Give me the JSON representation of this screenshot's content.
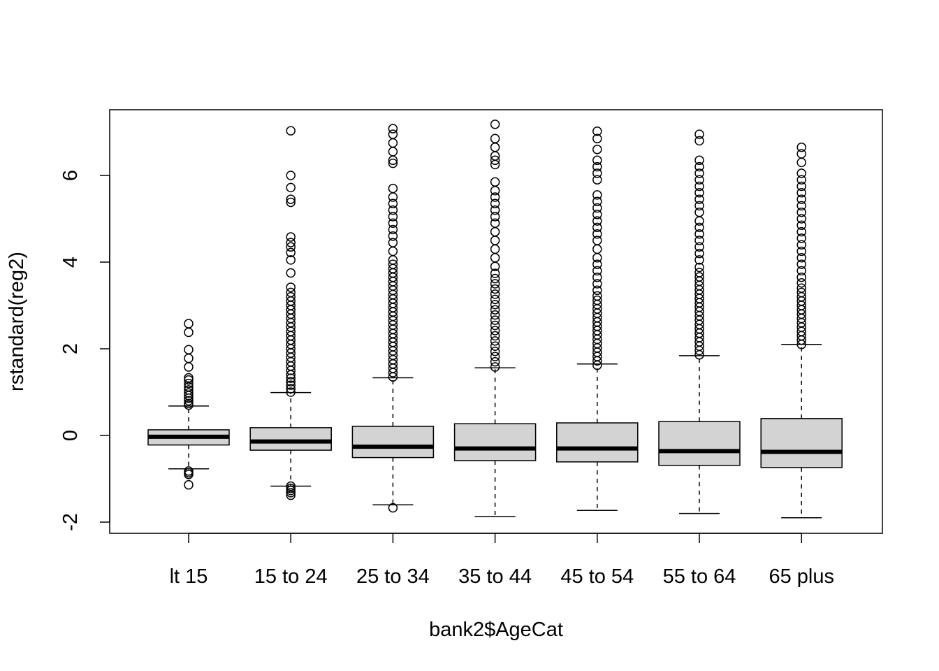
{
  "chart_data": {
    "type": "boxplot",
    "xlabel": "bank2$AgeCat",
    "ylabel": "rstandard(reg2)",
    "ylim": [
      -2.25,
      7.5
    ],
    "yticks": [
      -2,
      0,
      2,
      4,
      6
    ],
    "ytick_labels": [
      "-2",
      "0",
      "2",
      "4",
      "6"
    ],
    "grid": false,
    "box_fill": "#d3d3d3",
    "line_color": "#000000",
    "categories": [
      "lt 15",
      "15 to 24",
      "25 to 34",
      "35 to 44",
      "45 to 54",
      "55 to 64",
      "65 plus"
    ],
    "boxes": [
      {
        "label": "lt 15",
        "whisker_low": -0.77,
        "q1": -0.22,
        "median": -0.03,
        "q3": 0.13,
        "whisker_high": 0.68,
        "outliers": [
          -0.82,
          -0.86,
          -0.9,
          -1.14,
          0.7,
          0.74,
          0.8,
          0.86,
          0.92,
          0.98,
          1.05,
          1.12,
          1.2,
          1.28,
          1.33,
          1.58,
          1.78,
          1.98,
          2.38,
          2.58
        ]
      },
      {
        "label": "15 to 24",
        "whisker_low": -1.17,
        "q1": -0.34,
        "median": -0.14,
        "q3": 0.18,
        "whisker_high": 0.99,
        "outliers": [
          -1.17,
          -1.22,
          -1.27,
          -1.32,
          -1.38,
          1.0,
          1.08,
          1.16,
          1.24,
          1.32,
          1.4,
          1.5,
          1.6,
          1.7,
          1.8,
          1.9,
          2.0,
          2.1,
          2.2,
          2.3,
          2.4,
          2.5,
          2.6,
          2.7,
          2.8,
          2.9,
          3.0,
          3.1,
          3.2,
          3.3,
          3.42,
          3.75,
          4.05,
          4.22,
          4.35,
          4.45,
          4.58,
          5.38,
          5.45,
          5.72,
          6.0,
          7.03
        ]
      },
      {
        "label": "25 to 34",
        "whisker_low": -1.6,
        "q1": -0.51,
        "median": -0.26,
        "q3": 0.21,
        "whisker_high": 1.33,
        "outliers": [
          -1.67,
          1.35,
          1.45,
          1.55,
          1.65,
          1.75,
          1.85,
          1.95,
          2.05,
          2.15,
          2.25,
          2.35,
          2.45,
          2.55,
          2.65,
          2.75,
          2.85,
          2.95,
          3.05,
          3.15,
          3.25,
          3.35,
          3.45,
          3.55,
          3.65,
          3.75,
          3.85,
          3.95,
          4.05,
          4.25,
          4.45,
          4.6,
          4.75,
          4.9,
          5.05,
          5.2,
          5.35,
          5.5,
          5.7,
          6.28,
          6.35,
          6.55,
          6.75,
          6.95,
          7.08
        ]
      },
      {
        "label": "35 to 44",
        "whisker_low": -1.87,
        "q1": -0.58,
        "median": -0.3,
        "q3": 0.27,
        "whisker_high": 1.56,
        "outliers": [
          1.58,
          1.7,
          1.82,
          1.94,
          2.06,
          2.18,
          2.3,
          2.42,
          2.54,
          2.66,
          2.78,
          2.9,
          3.02,
          3.14,
          3.26,
          3.38,
          3.5,
          3.62,
          3.74,
          3.9,
          4.1,
          4.3,
          4.5,
          4.7,
          4.9,
          5.05,
          5.2,
          5.35,
          5.5,
          5.65,
          5.85,
          6.25,
          6.35,
          6.45,
          6.65,
          6.85,
          7.18
        ]
      },
      {
        "label": "45 to 54",
        "whisker_low": -1.73,
        "q1": -0.61,
        "median": -0.3,
        "q3": 0.29,
        "whisker_high": 1.65,
        "outliers": [
          1.62,
          1.72,
          1.82,
          1.92,
          2.02,
          2.12,
          2.22,
          2.32,
          2.42,
          2.52,
          2.62,
          2.72,
          2.82,
          2.92,
          3.02,
          3.12,
          3.22,
          3.35,
          3.5,
          3.65,
          3.8,
          3.95,
          4.1,
          4.3,
          4.5,
          4.65,
          4.8,
          4.95,
          5.1,
          5.25,
          5.4,
          5.55,
          5.9,
          6.05,
          6.2,
          6.35,
          6.6,
          6.85,
          7.02
        ]
      },
      {
        "label": "55 to 64",
        "whisker_low": -1.8,
        "q1": -0.69,
        "median": -0.36,
        "q3": 0.32,
        "whisker_high": 1.84,
        "outliers": [
          1.86,
          1.96,
          2.06,
          2.16,
          2.26,
          2.36,
          2.46,
          2.56,
          2.66,
          2.76,
          2.86,
          2.96,
          3.06,
          3.16,
          3.26,
          3.36,
          3.46,
          3.56,
          3.66,
          3.76,
          3.88,
          4.05,
          4.2,
          4.35,
          4.5,
          4.65,
          4.8,
          4.95,
          5.15,
          5.3,
          5.45,
          5.6,
          5.75,
          5.9,
          6.05,
          6.2,
          6.35,
          6.8,
          6.95
        ]
      },
      {
        "label": "65 plus",
        "whisker_low": -1.9,
        "q1": -0.74,
        "median": -0.38,
        "q3": 0.39,
        "whisker_high": 2.1,
        "outliers": [
          2.1,
          2.2,
          2.3,
          2.4,
          2.5,
          2.6,
          2.7,
          2.8,
          2.9,
          3.0,
          3.1,
          3.2,
          3.3,
          3.4,
          3.52,
          3.65,
          3.8,
          3.95,
          4.1,
          4.25,
          4.4,
          4.55,
          4.7,
          4.85,
          5.0,
          5.15,
          5.3,
          5.45,
          5.6,
          5.75,
          5.9,
          6.05,
          6.3,
          6.5,
          6.65
        ]
      }
    ]
  }
}
